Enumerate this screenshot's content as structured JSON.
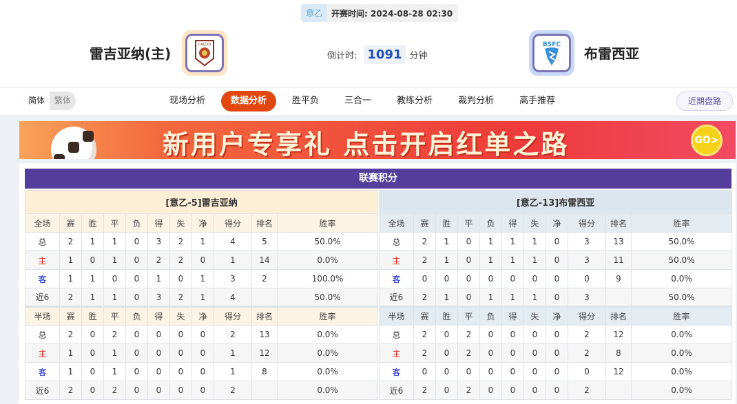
{
  "header": {
    "league": "意乙",
    "kickoff_label": "开赛时间:",
    "kickoff_time": "2024-08-28 02:30",
    "home_team": "雷吉亚纳(主)",
    "away_team": "布雷西亚",
    "countdown_label": "倒计时:",
    "countdown_value": "1091",
    "countdown_unit": "分钟",
    "home_logo_text": "CALCIO",
    "away_logo_text": "BSFC"
  },
  "nav": {
    "lang_simplified": "简体",
    "lang_traditional": "繁体",
    "tabs": [
      "现场分析",
      "数据分析",
      "胜平负",
      "三合一",
      "教练分析",
      "裁判分析",
      "高手推荐"
    ],
    "active_tab": 1,
    "recent_button": "近期盘路"
  },
  "banner": {
    "text": "新用户专享礼  点击开启红单之路",
    "go": "GO>"
  },
  "standings": {
    "title": "联赛积分",
    "columns_full": [
      "全场",
      "赛",
      "胜",
      "平",
      "负",
      "得",
      "失",
      "净",
      "得分",
      "排名",
      "胜率"
    ],
    "columns_half": [
      "半场",
      "赛",
      "胜",
      "平",
      "负",
      "得",
      "失",
      "净",
      "得分",
      "排名",
      "胜率"
    ],
    "home": {
      "title": "[意乙-5]雷吉亚纳",
      "full": [
        [
          "总",
          "2",
          "1",
          "1",
          "0",
          "3",
          "2",
          "1",
          "4",
          "5",
          "50.0%"
        ],
        [
          "主",
          "1",
          "0",
          "1",
          "0",
          "2",
          "2",
          "0",
          "1",
          "14",
          "0.0%"
        ],
        [
          "客",
          "1",
          "1",
          "0",
          "0",
          "1",
          "0",
          "1",
          "3",
          "2",
          "100.0%"
        ],
        [
          "近6",
          "2",
          "1",
          "1",
          "0",
          "3",
          "2",
          "1",
          "4",
          "",
          "50.0%"
        ]
      ],
      "half": [
        [
          "总",
          "2",
          "0",
          "2",
          "0",
          "0",
          "0",
          "0",
          "2",
          "13",
          "0.0%"
        ],
        [
          "主",
          "1",
          "0",
          "1",
          "0",
          "0",
          "0",
          "0",
          "1",
          "12",
          "0.0%"
        ],
        [
          "客",
          "1",
          "0",
          "1",
          "0",
          "0",
          "0",
          "0",
          "1",
          "8",
          "0.0%"
        ],
        [
          "近6",
          "2",
          "0",
          "2",
          "0",
          "0",
          "0",
          "0",
          "2",
          "",
          "0.0%"
        ]
      ]
    },
    "away": {
      "title": "[意乙-13]布雷西亚",
      "full": [
        [
          "总",
          "2",
          "1",
          "0",
          "1",
          "1",
          "1",
          "0",
          "3",
          "13",
          "50.0%"
        ],
        [
          "主",
          "2",
          "1",
          "0",
          "1",
          "1",
          "1",
          "0",
          "3",
          "11",
          "50.0%"
        ],
        [
          "客",
          "0",
          "0",
          "0",
          "0",
          "0",
          "0",
          "0",
          "0",
          "9",
          "0.0%"
        ],
        [
          "近6",
          "2",
          "1",
          "0",
          "1",
          "1",
          "1",
          "0",
          "3",
          "",
          "50.0%"
        ]
      ],
      "half": [
        [
          "总",
          "2",
          "0",
          "2",
          "0",
          "0",
          "0",
          "0",
          "2",
          "12",
          "0.0%"
        ],
        [
          "主",
          "2",
          "0",
          "2",
          "0",
          "0",
          "0",
          "0",
          "2",
          "8",
          "0.0%"
        ],
        [
          "客",
          "0",
          "0",
          "0",
          "0",
          "0",
          "0",
          "0",
          "0",
          "12",
          "0.0%"
        ],
        [
          "近6",
          "2",
          "0",
          "2",
          "0",
          "0",
          "0",
          "0",
          "2",
          "",
          "0.0%"
        ]
      ]
    }
  },
  "colors": {
    "accent": "#e2470f",
    "header_purple": "#533f9b",
    "home_red": "#e0201c",
    "away_blue": "#1226d6"
  }
}
